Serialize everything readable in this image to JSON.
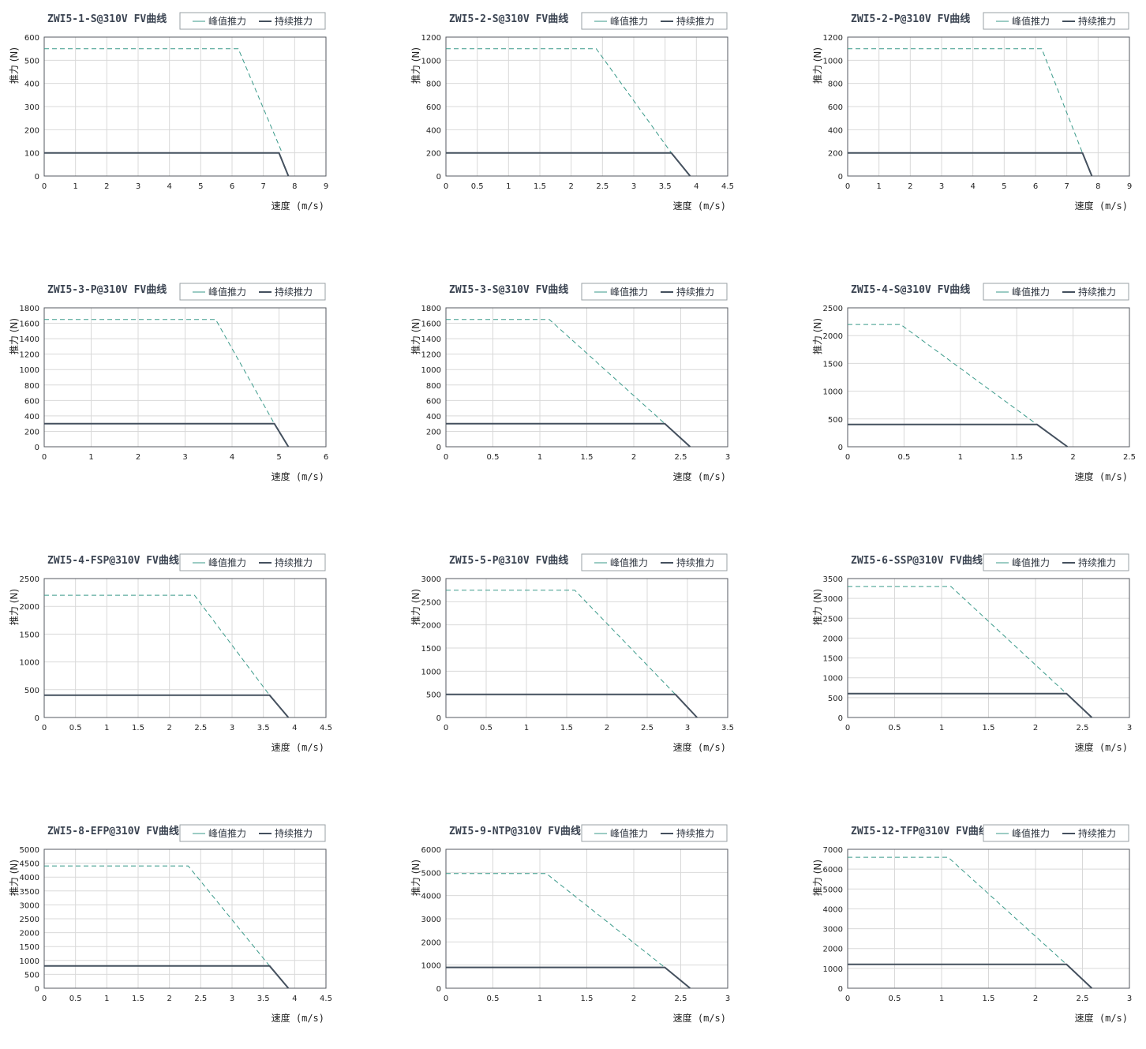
{
  "legend": {
    "peak": "峰值推力",
    "cont": "持续推力"
  },
  "colors": {
    "peak": "#3a9a8a",
    "cont": "#44505e",
    "grid": "#d9d9d9"
  },
  "chart_data": [
    {
      "type": "line",
      "title": "ZWI5-1-S@310V FV曲线",
      "xlabel": "速度 (m/s)",
      "ylabel": "推力 (N)",
      "xlim": [
        0,
        9
      ],
      "ylim": [
        0,
        600
      ],
      "xticks": [
        "0",
        "1",
        "2",
        "3",
        "4",
        "5",
        "6",
        "7",
        "8",
        "9"
      ],
      "yticks": [
        "0",
        "100",
        "200",
        "300",
        "400",
        "500",
        "600"
      ],
      "series": [
        {
          "name": "峰值推力",
          "x": [
            0,
            6.2,
            7.6
          ],
          "y": [
            550,
            550,
            100
          ]
        },
        {
          "name": "持续推力",
          "x": [
            0,
            7.5,
            7.8
          ],
          "y": [
            100,
            100,
            0
          ]
        }
      ]
    },
    {
      "type": "line",
      "title": "ZWI5-2-S@310V FV曲线",
      "xlabel": "速度 (m/s)",
      "ylabel": "推力 (N)",
      "xlim": [
        0,
        4.5
      ],
      "ylim": [
        0,
        1200
      ],
      "xticks": [
        "0",
        "0.5",
        "1",
        "1.5",
        "2",
        "2.5",
        "3",
        "3.5",
        "4",
        "4.5"
      ],
      "yticks": [
        "0",
        "200",
        "400",
        "600",
        "800",
        "1000",
        "1200"
      ],
      "series": [
        {
          "name": "峰值推力",
          "x": [
            0,
            2.4,
            3.6
          ],
          "y": [
            1100,
            1100,
            200
          ]
        },
        {
          "name": "持续推力",
          "x": [
            0,
            3.6,
            3.9
          ],
          "y": [
            200,
            200,
            0
          ]
        }
      ]
    },
    {
      "type": "line",
      "title": "ZWI5-2-P@310V FV曲线",
      "xlabel": "速度 (m/s)",
      "ylabel": "推力 (N)",
      "xlim": [
        0,
        9
      ],
      "ylim": [
        0,
        1200
      ],
      "xticks": [
        "0",
        "1",
        "2",
        "3",
        "4",
        "5",
        "6",
        "7",
        "8",
        "9"
      ],
      "yticks": [
        "0",
        "200",
        "400",
        "600",
        "800",
        "1000",
        "1200"
      ],
      "series": [
        {
          "name": "峰值推力",
          "x": [
            0,
            6.2,
            7.5
          ],
          "y": [
            1100,
            1100,
            200
          ]
        },
        {
          "name": "持续推力",
          "x": [
            0,
            7.5,
            7.8
          ],
          "y": [
            200,
            200,
            0
          ]
        }
      ]
    },
    {
      "type": "line",
      "title": "ZWI5-3-P@310V FV曲线",
      "xlabel": "速度 (m/s)",
      "ylabel": "推力 (N)",
      "xlim": [
        0,
        6
      ],
      "ylim": [
        0,
        1800
      ],
      "xticks": [
        "0",
        "1",
        "2",
        "3",
        "4",
        "5",
        "6"
      ],
      "yticks": [
        "0",
        "200",
        "400",
        "600",
        "800",
        "1000",
        "1200",
        "1400",
        "1600",
        "1800"
      ],
      "series": [
        {
          "name": "峰值推力",
          "x": [
            0,
            3.65,
            4.9
          ],
          "y": [
            1650,
            1650,
            300
          ]
        },
        {
          "name": "持续推力",
          "x": [
            0,
            4.9,
            5.2
          ],
          "y": [
            300,
            300,
            0
          ]
        }
      ]
    },
    {
      "type": "line",
      "title": "ZWI5-3-S@310V FV曲线",
      "xlabel": "速度 (m/s)",
      "ylabel": "推力 (N)",
      "xlim": [
        0,
        3
      ],
      "ylim": [
        0,
        1800
      ],
      "xticks": [
        "0",
        "0.5",
        "1",
        "1.5",
        "2",
        "2.5",
        "3"
      ],
      "yticks": [
        "0",
        "200",
        "400",
        "600",
        "800",
        "1000",
        "1200",
        "1400",
        "1600",
        "1800"
      ],
      "series": [
        {
          "name": "峰值推力",
          "x": [
            0,
            1.1,
            2.33
          ],
          "y": [
            1650,
            1650,
            300
          ]
        },
        {
          "name": "持续推力",
          "x": [
            0,
            2.33,
            2.6
          ],
          "y": [
            300,
            300,
            0
          ]
        }
      ]
    },
    {
      "type": "line",
      "title": "ZWI5-4-S@310V FV曲线",
      "xlabel": "速度 (m/s)",
      "ylabel": "推力 (N)",
      "xlim": [
        0,
        2.5
      ],
      "ylim": [
        0,
        2500
      ],
      "xticks": [
        "0",
        "0.5",
        "1",
        "1.5",
        "2",
        "2.5"
      ],
      "yticks": [
        "0",
        "500",
        "1000",
        "1500",
        "2000",
        "2500"
      ],
      "series": [
        {
          "name": "峰值推力",
          "x": [
            0,
            0.47,
            1.68
          ],
          "y": [
            2200,
            2200,
            400
          ]
        },
        {
          "name": "持续推力",
          "x": [
            0,
            1.68,
            1.95
          ],
          "y": [
            400,
            400,
            0
          ]
        }
      ]
    },
    {
      "type": "line",
      "title": "ZWI5-4-FSP@310V FV曲线",
      "xlabel": "速度 (m/s)",
      "ylabel": "推力 (N)",
      "xlim": [
        0,
        4.5
      ],
      "ylim": [
        0,
        2500
      ],
      "xticks": [
        "0",
        "0.5",
        "1",
        "1.5",
        "2",
        "2.5",
        "3",
        "3.5",
        "4",
        "4.5"
      ],
      "yticks": [
        "0",
        "500",
        "1000",
        "1500",
        "2000",
        "2500"
      ],
      "series": [
        {
          "name": "峰值推力",
          "x": [
            0,
            2.4,
            3.6
          ],
          "y": [
            2200,
            2200,
            400
          ]
        },
        {
          "name": "持续推力",
          "x": [
            0,
            3.6,
            3.9
          ],
          "y": [
            400,
            400,
            0
          ]
        }
      ]
    },
    {
      "type": "line",
      "title": "ZWI5-5-P@310V FV曲线",
      "xlabel": "速度 (m/s)",
      "ylabel": "推力 (N)",
      "xlim": [
        0,
        3.5
      ],
      "ylim": [
        0,
        3000
      ],
      "xticks": [
        "0",
        "0.5",
        "1",
        "1.5",
        "2",
        "2.5",
        "3",
        "3.5"
      ],
      "yticks": [
        "0",
        "500",
        "1000",
        "1500",
        "2000",
        "2500",
        "3000"
      ],
      "series": [
        {
          "name": "峰值推力",
          "x": [
            0,
            1.6,
            2.85
          ],
          "y": [
            2750,
            2750,
            500
          ]
        },
        {
          "name": "持续推力",
          "x": [
            0,
            2.85,
            3.12
          ],
          "y": [
            500,
            500,
            0
          ]
        }
      ]
    },
    {
      "type": "line",
      "title": "ZWI5-6-SSP@310V FV曲线",
      "xlabel": "速度 (m/s)",
      "ylabel": "推力 (N)",
      "xlim": [
        0,
        3
      ],
      "ylim": [
        0,
        3500
      ],
      "xticks": [
        "0",
        "0.5",
        "1",
        "1.5",
        "2",
        "2.5",
        "3"
      ],
      "yticks": [
        "0",
        "500",
        "1000",
        "1500",
        "2000",
        "2500",
        "3000",
        "3500"
      ],
      "series": [
        {
          "name": "峰值推力",
          "x": [
            0,
            1.1,
            2.33
          ],
          "y": [
            3300,
            3300,
            600
          ]
        },
        {
          "name": "持续推力",
          "x": [
            0,
            2.33,
            2.6
          ],
          "y": [
            600,
            600,
            0
          ]
        }
      ]
    },
    {
      "type": "line",
      "title": "ZWI5-8-EFP@310V FV曲线",
      "xlabel": "速度 (m/s)",
      "ylabel": "推力 (N)",
      "xlim": [
        0,
        4.5
      ],
      "ylim": [
        0,
        5000
      ],
      "xticks": [
        "0",
        "0.5",
        "1",
        "1.5",
        "2",
        "2.5",
        "3",
        "3.5",
        "4",
        "4.5"
      ],
      "yticks": [
        "0",
        "500",
        "1000",
        "1500",
        "2000",
        "2500",
        "3000",
        "3500",
        "4000",
        "4500",
        "5000"
      ],
      "series": [
        {
          "name": "峰值推力",
          "x": [
            0,
            2.3,
            3.6
          ],
          "y": [
            4400,
            4400,
            800
          ]
        },
        {
          "name": "持续推力",
          "x": [
            0,
            3.6,
            3.9
          ],
          "y": [
            800,
            800,
            0
          ]
        }
      ]
    },
    {
      "type": "line",
      "title": "ZWI5-9-NTP@310V FV曲线",
      "xlabel": "速度 (m/s)",
      "ylabel": "推力 (N)",
      "xlim": [
        0,
        3
      ],
      "ylim": [
        0,
        6000
      ],
      "xticks": [
        "0",
        "0.5",
        "1",
        "1.5",
        "2",
        "2.5",
        "3"
      ],
      "yticks": [
        "0",
        "1000",
        "2000",
        "3000",
        "4000",
        "5000",
        "6000"
      ],
      "series": [
        {
          "name": "峰值推力",
          "x": [
            0,
            1.07,
            2.33
          ],
          "y": [
            4950,
            4950,
            900
          ]
        },
        {
          "name": "持续推力",
          "x": [
            0,
            2.33,
            2.6
          ],
          "y": [
            900,
            900,
            0
          ]
        }
      ]
    },
    {
      "type": "line",
      "title": "ZWI5-12-TFP@310V FV曲线",
      "xlabel": "速度 (m/s)",
      "ylabel": "推力 (N)",
      "xlim": [
        0,
        3
      ],
      "ylim": [
        0,
        7000
      ],
      "xticks": [
        "0",
        "0.5",
        "1",
        "1.5",
        "2",
        "2.5",
        "3"
      ],
      "yticks": [
        "0",
        "1000",
        "2000",
        "3000",
        "4000",
        "5000",
        "6000",
        "7000"
      ],
      "series": [
        {
          "name": "峰值推力",
          "x": [
            0,
            1.07,
            2.33
          ],
          "y": [
            6600,
            6600,
            1200
          ]
        },
        {
          "name": "持续推力",
          "x": [
            0,
            2.33,
            2.6
          ],
          "y": [
            1200,
            1200,
            0
          ]
        }
      ]
    }
  ]
}
